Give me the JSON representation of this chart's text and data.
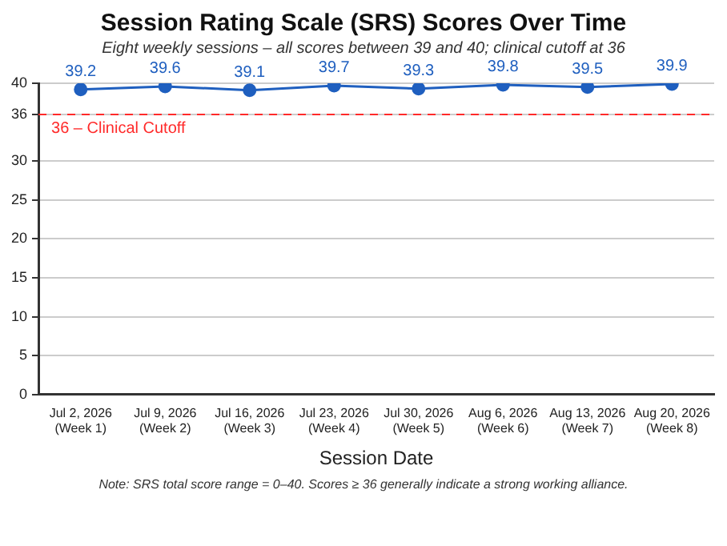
{
  "chart_data": {
    "type": "line",
    "title": "Session Rating Scale (SRS) Scores Over Time",
    "subtitle": "Eight weekly sessions – all scores between 39 and 40; clinical cutoff at 36",
    "xlabel": "Session Date",
    "categories": [
      "Jul 2, 2026\n(Week 1)",
      "Jul 9, 2026\n(Week 2)",
      "Jul 16, 2026\n(Week 3)",
      "Jul 23, 2026\n(Week 4)",
      "Jul 30, 2026\n(Week 5)",
      "Aug 6, 2026\n(Week 6)",
      "Aug 13, 2026\n(Week 7)",
      "Aug 20, 2026\n(Week 8)"
    ],
    "series": [
      {
        "color": "#1f5fbf",
        "values": [
          39.2,
          39.6,
          39.1,
          39.7,
          39.3,
          39.8,
          39.5,
          39.9
        ]
      }
    ],
    "ylim": [
      0,
      40
    ],
    "yticks": [
      0,
      5,
      10,
      15,
      20,
      25,
      30,
      36,
      40
    ],
    "ref_lines": [
      {
        "axis": "y",
        "value": 36,
        "label": "36 – Clinical Cutoff",
        "color": "#ff2a2a",
        "line_style": "dashed"
      }
    ],
    "annotations": [
      "Note: SRS total score range = 0–40. Scores ≥ 36 generally indicate a strong working alliance."
    ],
    "grid": "y",
    "legend": false,
    "marker": "circle",
    "line_style": "solid",
    "data_labels": true
  }
}
